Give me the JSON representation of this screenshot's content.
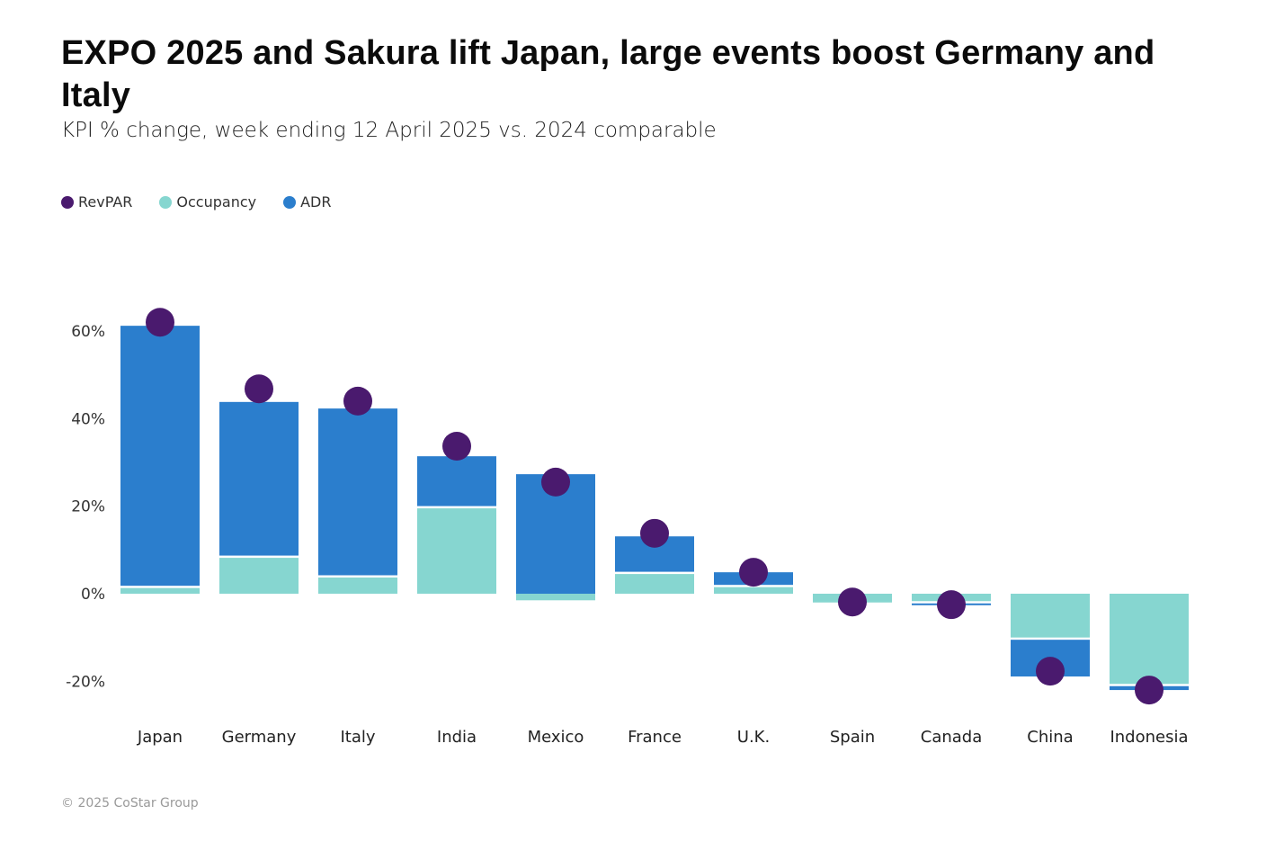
{
  "title": "EXPO 2025 and Sakura lift Japan, large events boost Germany and Italy",
  "subtitle": "KPI % change, week ending 12 April 2025 vs. 2024 comparable",
  "footer": "© 2025 CoStar Group",
  "colors": {
    "revpar": "#4a1a6e",
    "occupancy": "#86d6d0",
    "adr": "#2b7ecd"
  },
  "chart_data": {
    "type": "bar",
    "title": "EXPO 2025 and Sakura lift Japan, large events boost Germany and Italy",
    "subtitle": "KPI % change, week ending 12 April 2025 vs. 2024 comparable",
    "xlabel": "",
    "ylabel": "",
    "ylim": [
      -25,
      65
    ],
    "yticks": [
      60,
      40,
      20,
      0,
      -20
    ],
    "ytick_labels": [
      "60%",
      "40%",
      "20%",
      "0%",
      "-20%"
    ],
    "grid": false,
    "legend_position": "top-left",
    "legend": [
      "RevPAR",
      "Occupancy",
      "ADR"
    ],
    "categories": [
      "Japan",
      "Germany",
      "Italy",
      "India",
      "Mexico",
      "France",
      "U.K.",
      "Spain",
      "Canada",
      "China",
      "Indonesia"
    ],
    "series": [
      {
        "name": "Occupancy",
        "kind": "stacked-bar",
        "values": [
          1.3,
          8.2,
          3.7,
          19.5,
          -1.5,
          4.5,
          1.5,
          -2.0,
          -1.7,
          -10.0,
          -20.6
        ]
      },
      {
        "name": "ADR",
        "kind": "stacked-bar",
        "values": [
          59.9,
          35.6,
          38.6,
          11.9,
          27.3,
          8.6,
          3.4,
          0.0,
          -0.9,
          -8.9,
          -1.4
        ]
      },
      {
        "name": "RevPAR",
        "kind": "dot",
        "values": [
          62.0,
          46.8,
          44.0,
          33.7,
          25.5,
          13.8,
          4.9,
          -1.9,
          -2.5,
          -17.7,
          -22.0
        ]
      }
    ]
  }
}
